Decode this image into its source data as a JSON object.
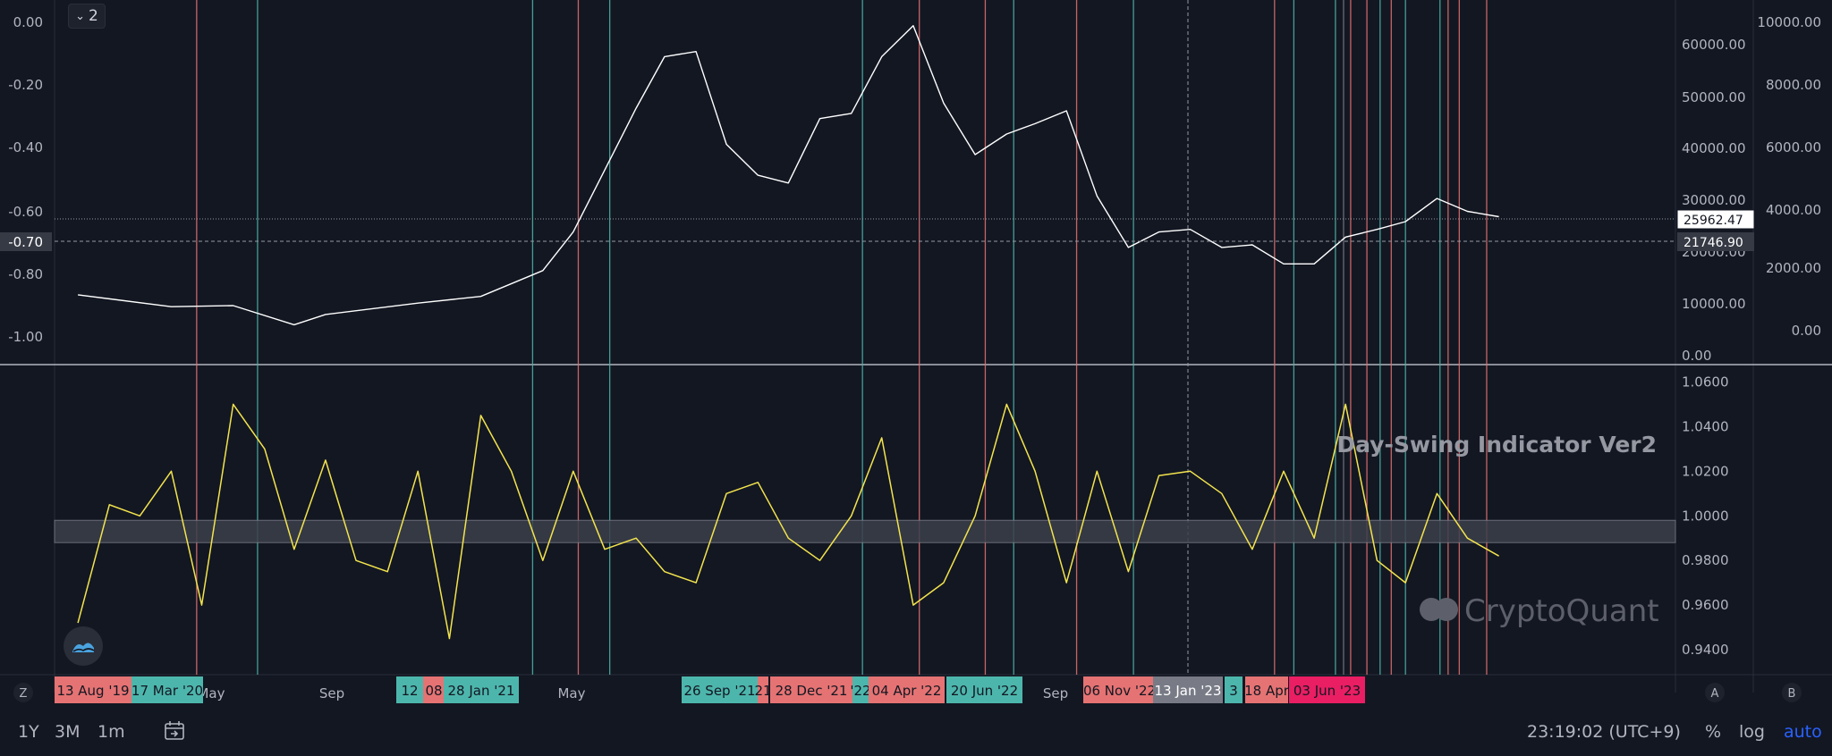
{
  "legend_toggle": {
    "count": "2"
  },
  "indicator_title": "Day-Swing Indicator Ver2",
  "watermark": "CryptoQuant",
  "price_badges": {
    "current": "25962.47",
    "crosshair": "21746.90",
    "left_crosshair": "-0.70"
  },
  "corner_labels": {
    "left": "Z",
    "right_a": "A",
    "right_b": "B"
  },
  "toolbar": {
    "timeframes": [
      "1Y",
      "3M",
      "1m"
    ],
    "time": "23:19:02 (UTC+9)",
    "percent": "%",
    "log": "log",
    "auto": "auto"
  },
  "colors": {
    "background": "#131722",
    "price_line": "#ffffff",
    "indicator_line": "#f3e44d",
    "signal_red": "#e57373",
    "signal_teal": "#4db6ac",
    "accent_blue": "#2962ff"
  },
  "chart_data": [
    {
      "type": "line",
      "name": "price",
      "left_axis_ticks": [
        "0.00",
        "-0.20",
        "-0.40",
        "-0.60",
        "-0.80",
        "-1.00"
      ],
      "right_axis_ticks_outer": [
        "10000.00",
        "8000.00",
        "6000.00",
        "4000.00",
        "2000.00",
        "0.00"
      ],
      "right_axis_ticks_inner": [
        "60000.00",
        "50000.00",
        "40000.00",
        "30000.00",
        "20000.00",
        "10000.00",
        "0.00"
      ],
      "x": [
        "2019-08",
        "2019-11",
        "2020-01",
        "2020-03",
        "2020-04",
        "2020-07",
        "2020-09",
        "2020-11",
        "2020-12",
        "2021-01",
        "2021-02",
        "2021-03",
        "2021-04",
        "2021-05",
        "2021-06",
        "2021-07",
        "2021-08",
        "2021-09",
        "2021-10",
        "2021-11",
        "2021-12",
        "2022-01",
        "2022-02",
        "2022-03",
        "2022-04",
        "2022-05",
        "2022-06",
        "2022-07",
        "2022-08",
        "2022-09",
        "2022-10",
        "2022-11",
        "2022-12",
        "2023-01",
        "2023-02",
        "2023-03",
        "2023-04",
        "2023-05",
        "2023-06"
      ],
      "y": [
        10800,
        8500,
        8700,
        5000,
        7000,
        9200,
        10500,
        15500,
        23000,
        35000,
        47000,
        57000,
        58000,
        40000,
        34000,
        32500,
        45000,
        46000,
        57000,
        63000,
        48000,
        38000,
        42000,
        44000,
        46500,
        30000,
        20000,
        23000,
        23500,
        20000,
        20500,
        16800,
        16800,
        22000,
        23500,
        25000,
        29500,
        27000,
        25962
      ]
    },
    {
      "type": "line",
      "name": "Day-Swing Indicator Ver2",
      "axis_ticks": [
        "1.0600",
        "1.0400",
        "1.0200",
        "1.0000",
        "0.9800",
        "0.9600",
        "0.9400"
      ],
      "band": [
        0.988,
        0.998
      ],
      "x": [
        "2019-08",
        "2019-09",
        "2019-10",
        "2019-11",
        "2019-12",
        "2020-01",
        "2020-02",
        "2020-03",
        "2020-04",
        "2020-05",
        "2020-06",
        "2020-07",
        "2020-08",
        "2020-09",
        "2020-10",
        "2020-11",
        "2020-12",
        "2021-01",
        "2021-02",
        "2021-03",
        "2021-04",
        "2021-05",
        "2021-06",
        "2021-07",
        "2021-08",
        "2021-09",
        "2021-10",
        "2021-11",
        "2021-12",
        "2022-01",
        "2022-02",
        "2022-03",
        "2022-04",
        "2022-05",
        "2022-06",
        "2022-07",
        "2022-08",
        "2022-09",
        "2022-10",
        "2022-11",
        "2022-12",
        "2023-01",
        "2023-02",
        "2023-03",
        "2023-04",
        "2023-05",
        "2023-06"
      ],
      "y": [
        0.952,
        1.005,
        1.0,
        1.02,
        0.96,
        1.05,
        1.03,
        0.985,
        1.025,
        0.98,
        0.975,
        1.02,
        0.945,
        1.045,
        1.02,
        0.98,
        1.02,
        0.985,
        0.99,
        0.975,
        0.97,
        1.01,
        1.015,
        0.99,
        0.98,
        1.0,
        1.035,
        0.96,
        0.97,
        1.0,
        1.05,
        1.02,
        0.97,
        1.02,
        0.975,
        1.018,
        1.02,
        1.01,
        0.985,
        1.02,
        0.99,
        1.05,
        0.98,
        0.97,
        1.01,
        0.99,
        0.982
      ]
    }
  ],
  "signals": [
    {
      "date": "2019-08-13",
      "label": "13 Aug '19",
      "color": "red"
    },
    {
      "date": "2020-03-17",
      "label": "17 Mar '20",
      "color": "teal"
    },
    {
      "date": "2020-12-12",
      "label": "12",
      "color": "teal"
    },
    {
      "date": "2021-01-08",
      "label": "08",
      "color": "red"
    },
    {
      "date": "2021-01-28",
      "label": "28 Jan '21",
      "color": "teal"
    },
    {
      "date": "2021-09-26",
      "label": "26 Sep '21",
      "color": "teal"
    },
    {
      "date": "2021-11-21",
      "label": "21",
      "color": "red"
    },
    {
      "date": "2021-12-28",
      "label": "28 Dec '21",
      "color": "red"
    },
    {
      "date": "2022-02-22",
      "label": "'22",
      "color": "teal"
    },
    {
      "date": "2022-04-04",
      "label": "04 Apr '22",
      "color": "red"
    },
    {
      "date": "2022-06-20",
      "label": "20 Jun '22",
      "color": "teal"
    },
    {
      "date": "2022-11-06",
      "label": "06 Nov '22",
      "color": "red"
    },
    {
      "date": "2023-01-13",
      "label": "13 Jan '23",
      "color": "gray"
    },
    {
      "date": "2023-03-15",
      "label": "3",
      "color": "teal"
    },
    {
      "date": "2023-04-18",
      "label": "18 Apr",
      "color": "red"
    },
    {
      "date": "2023-06-03",
      "label": "03 Jun '23",
      "color": "pink"
    }
  ],
  "time_axis_labels": [
    "May",
    "Sep",
    "May",
    "Sep"
  ],
  "vertical_lines": [
    {
      "date": "2019-12-10",
      "color": "red"
    },
    {
      "date": "2020-02-08",
      "color": "teal"
    },
    {
      "date": "2020-11-05",
      "color": "teal"
    },
    {
      "date": "2020-12-20",
      "color": "red"
    },
    {
      "date": "2021-01-20",
      "color": "teal"
    },
    {
      "date": "2021-09-26",
      "color": "teal"
    },
    {
      "date": "2021-11-21",
      "color": "red"
    },
    {
      "date": "2022-01-25",
      "color": "red"
    },
    {
      "date": "2022-02-22",
      "color": "teal"
    },
    {
      "date": "2022-04-25",
      "color": "red"
    },
    {
      "date": "2022-06-20",
      "color": "teal"
    },
    {
      "date": "2022-11-06",
      "color": "red"
    },
    {
      "date": "2022-11-25",
      "color": "teal"
    },
    {
      "date": "2023-01-05",
      "color": "teal"
    },
    {
      "date": "2023-01-13",
      "color": "gray"
    },
    {
      "date": "2023-01-20",
      "color": "red"
    },
    {
      "date": "2023-02-05",
      "color": "red"
    },
    {
      "date": "2023-02-18",
      "color": "teal"
    },
    {
      "date": "2023-03-01",
      "color": "red"
    },
    {
      "date": "2023-03-15",
      "color": "teal"
    },
    {
      "date": "2023-04-18",
      "color": "teal"
    },
    {
      "date": "2023-04-26",
      "color": "red"
    },
    {
      "date": "2023-05-07",
      "color": "red"
    },
    {
      "date": "2023-06-03",
      "color": "red"
    }
  ]
}
